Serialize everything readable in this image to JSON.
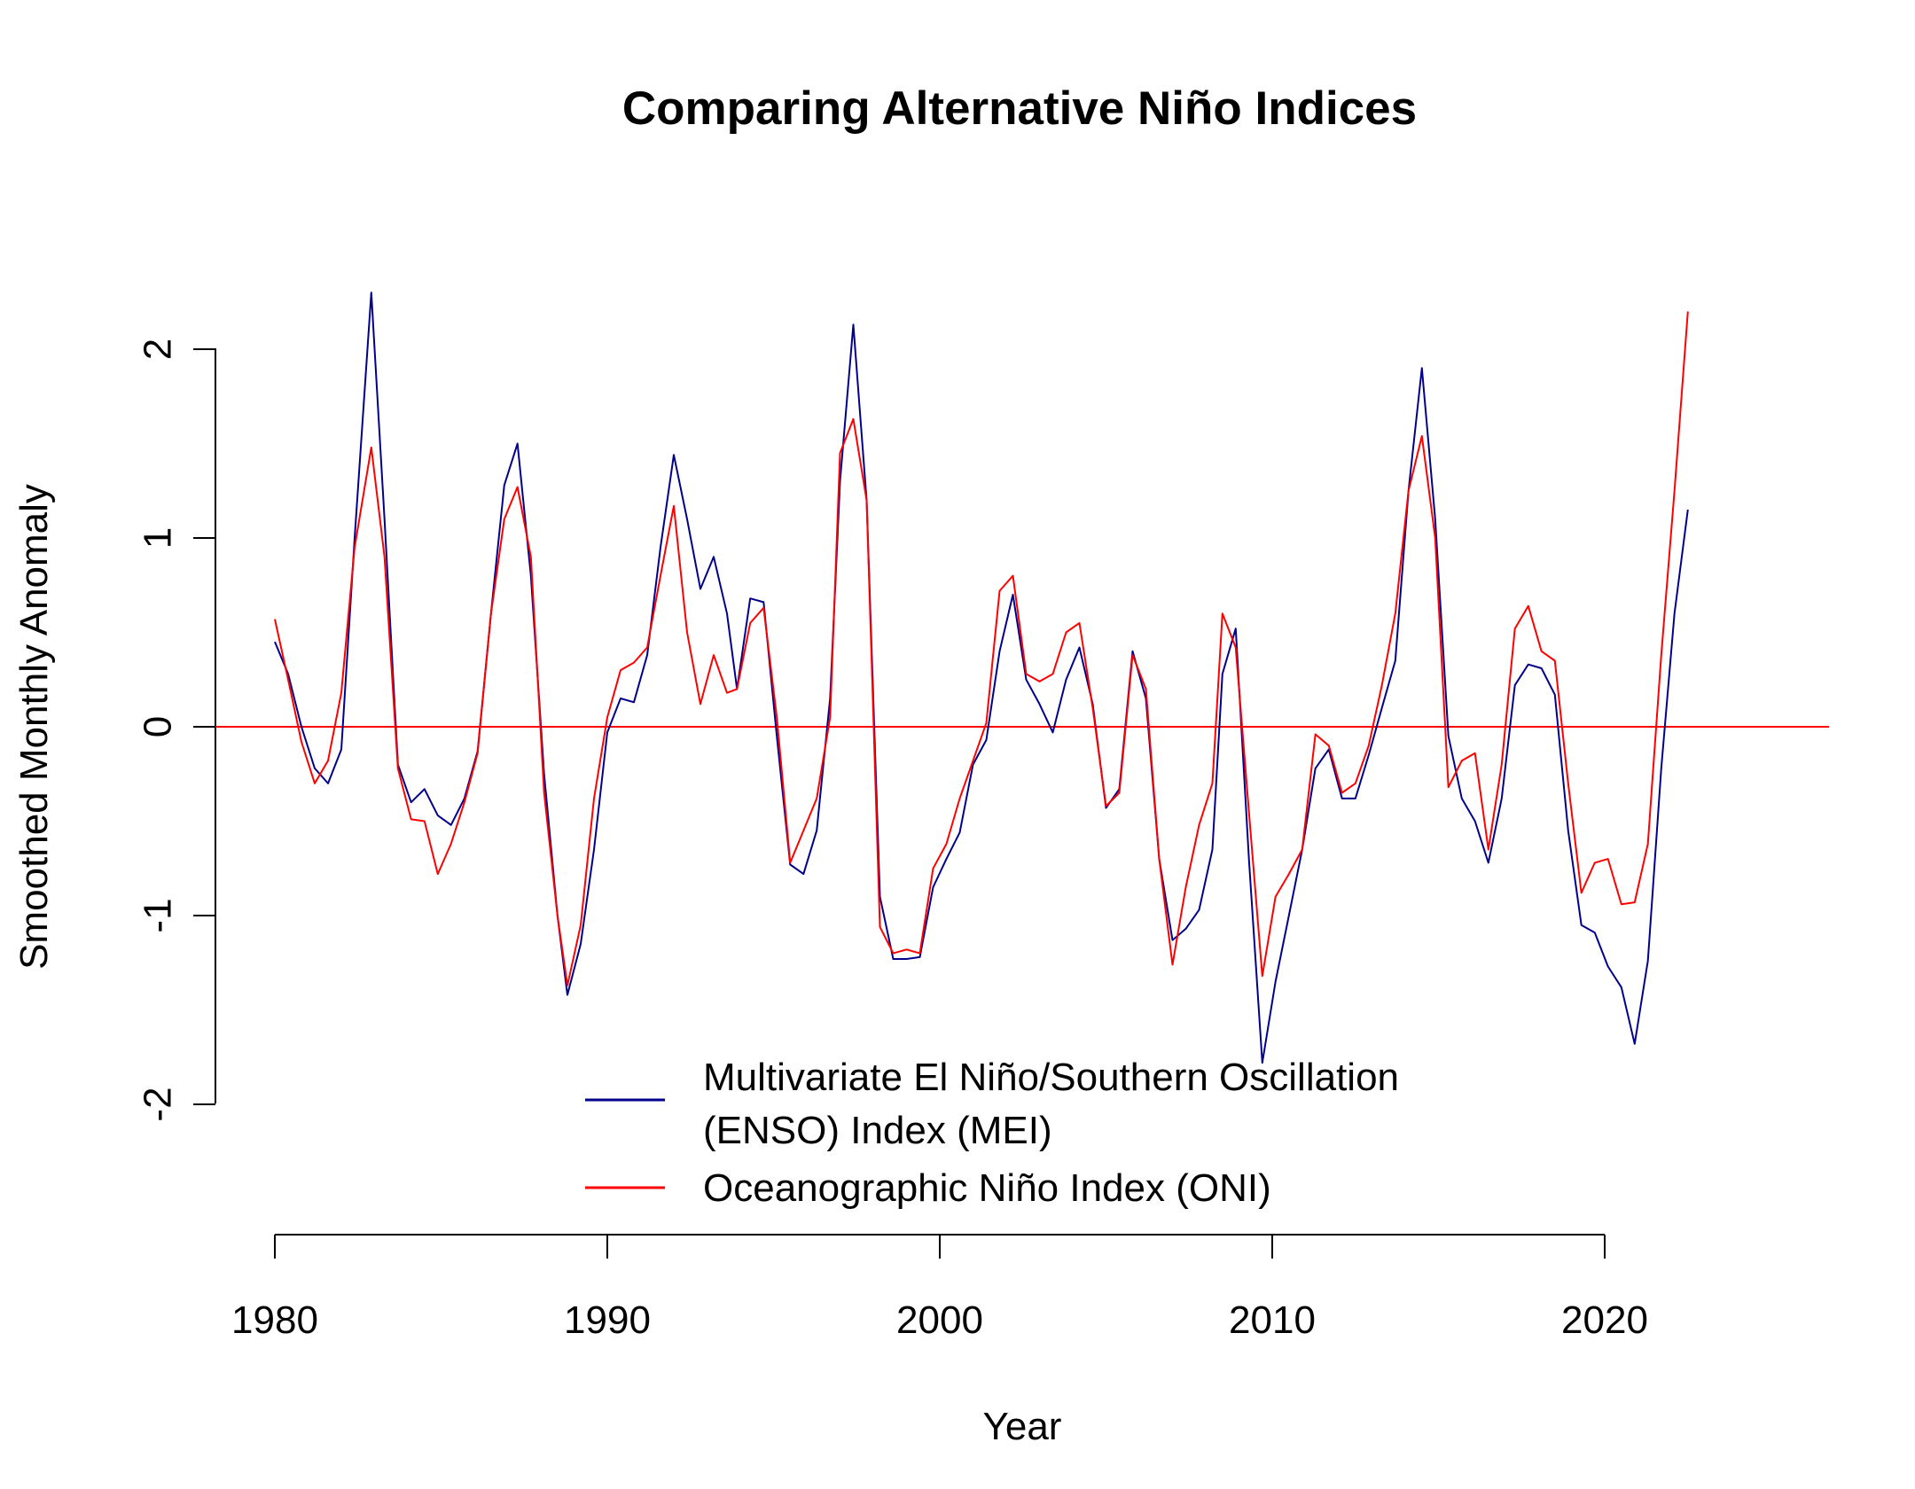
{
  "chart_data": {
    "type": "line",
    "title": "Comparing Alternative Niño Indices",
    "xlabel": "Year",
    "ylabel": "Smoothed Monthly Anomaly",
    "xlim": [
      1980,
      2024
    ],
    "ylim": [
      -2,
      2.3
    ],
    "x_ticks": [
      {
        "value": 1980,
        "label": "1980"
      },
      {
        "value": 1990,
        "label": "1990"
      },
      {
        "value": 2000,
        "label": "2000"
      },
      {
        "value": 2010,
        "label": "2010"
      },
      {
        "value": 2020,
        "label": "2020"
      }
    ],
    "y_ticks": [
      {
        "value": -2,
        "label": "-2"
      },
      {
        "value": -1,
        "label": "-1"
      },
      {
        "value": 0,
        "label": "0"
      },
      {
        "value": 1,
        "label": "1"
      },
      {
        "value": 2,
        "label": "2"
      }
    ],
    "reference_line": {
      "y": 0,
      "color": "#ff0000"
    },
    "legend": {
      "position": "bottom-center"
    },
    "series": [
      {
        "name": "Multivariate El Niño/Southern Oscillation (ENSO) Index (MEI)",
        "legend_lines": [
          "Multivariate El Niño/Southern Oscillation",
          "(ENSO) Index (MEI)"
        ],
        "color": "#00008b",
        "points": [
          [
            1980.0,
            0.45
          ],
          [
            1980.4,
            0.28
          ],
          [
            1980.8,
            0.0
          ],
          [
            1981.2,
            -0.22
          ],
          [
            1981.6,
            -0.3
          ],
          [
            1982.0,
            -0.12
          ],
          [
            1982.4,
            1.0
          ],
          [
            1982.9,
            2.3
          ],
          [
            1983.3,
            1.1
          ],
          [
            1983.7,
            -0.2
          ],
          [
            1984.1,
            -0.4
          ],
          [
            1984.5,
            -0.33
          ],
          [
            1984.9,
            -0.47
          ],
          [
            1985.3,
            -0.52
          ],
          [
            1985.7,
            -0.38
          ],
          [
            1986.1,
            -0.13
          ],
          [
            1986.5,
            0.6
          ],
          [
            1986.9,
            1.28
          ],
          [
            1987.3,
            1.5
          ],
          [
            1987.7,
            0.8
          ],
          [
            1988.1,
            -0.25
          ],
          [
            1988.5,
            -1.0
          ],
          [
            1988.8,
            -1.42
          ],
          [
            1989.2,
            -1.15
          ],
          [
            1989.6,
            -0.65
          ],
          [
            1990.0,
            -0.03
          ],
          [
            1990.4,
            0.15
          ],
          [
            1990.8,
            0.13
          ],
          [
            1991.2,
            0.38
          ],
          [
            1991.6,
            0.95
          ],
          [
            1992.0,
            1.44
          ],
          [
            1992.4,
            1.1
          ],
          [
            1992.8,
            0.73
          ],
          [
            1993.2,
            0.9
          ],
          [
            1993.6,
            0.6
          ],
          [
            1993.9,
            0.2
          ],
          [
            1994.3,
            0.68
          ],
          [
            1994.7,
            0.66
          ],
          [
            1995.1,
            -0.05
          ],
          [
            1995.5,
            -0.73
          ],
          [
            1995.9,
            -0.78
          ],
          [
            1996.3,
            -0.55
          ],
          [
            1996.7,
            0.15
          ],
          [
            1997.0,
            1.3
          ],
          [
            1997.4,
            2.13
          ],
          [
            1997.8,
            1.2
          ],
          [
            1998.2,
            -0.9
          ],
          [
            1998.6,
            -1.23
          ],
          [
            1999.0,
            -1.23
          ],
          [
            1999.4,
            -1.22
          ],
          [
            1999.8,
            -0.85
          ],
          [
            2000.2,
            -0.7
          ],
          [
            2000.6,
            -0.56
          ],
          [
            2001.0,
            -0.2
          ],
          [
            2001.4,
            -0.07
          ],
          [
            2001.8,
            0.4
          ],
          [
            2002.2,
            0.7
          ],
          [
            2002.6,
            0.25
          ],
          [
            2003.0,
            0.12
          ],
          [
            2003.4,
            -0.03
          ],
          [
            2003.8,
            0.25
          ],
          [
            2004.2,
            0.42
          ],
          [
            2004.6,
            0.12
          ],
          [
            2005.0,
            -0.43
          ],
          [
            2005.4,
            -0.33
          ],
          [
            2005.8,
            0.4
          ],
          [
            2006.2,
            0.15
          ],
          [
            2006.6,
            -0.7
          ],
          [
            2007.0,
            -1.13
          ],
          [
            2007.4,
            -1.07
          ],
          [
            2007.8,
            -0.97
          ],
          [
            2008.2,
            -0.65
          ],
          [
            2008.5,
            0.28
          ],
          [
            2008.9,
            0.52
          ],
          [
            2009.3,
            -0.7
          ],
          [
            2009.7,
            -1.78
          ],
          [
            2010.1,
            -1.35
          ],
          [
            2010.5,
            -1.0
          ],
          [
            2010.9,
            -0.65
          ],
          [
            2011.3,
            -0.22
          ],
          [
            2011.7,
            -0.12
          ],
          [
            2012.1,
            -0.38
          ],
          [
            2012.5,
            -0.38
          ],
          [
            2012.9,
            -0.15
          ],
          [
            2013.3,
            0.1
          ],
          [
            2013.7,
            0.35
          ],
          [
            2014.1,
            1.25
          ],
          [
            2014.5,
            1.9
          ],
          [
            2014.9,
            1.1
          ],
          [
            2015.3,
            -0.05
          ],
          [
            2015.7,
            -0.38
          ],
          [
            2016.1,
            -0.5
          ],
          [
            2016.5,
            -0.72
          ],
          [
            2016.9,
            -0.38
          ],
          [
            2017.3,
            0.22
          ],
          [
            2017.7,
            0.33
          ],
          [
            2018.1,
            0.31
          ],
          [
            2018.5,
            0.17
          ],
          [
            2018.9,
            -0.55
          ],
          [
            2019.3,
            -1.05
          ],
          [
            2019.7,
            -1.09
          ],
          [
            2020.1,
            -1.27
          ],
          [
            2020.5,
            -1.38
          ],
          [
            2020.9,
            -1.68
          ],
          [
            2021.3,
            -1.24
          ],
          [
            2021.7,
            -0.22
          ],
          [
            2022.1,
            0.6
          ],
          [
            2022.5,
            1.15
          ]
        ]
      },
      {
        "name": "Oceanographic Niño Index (ONI)",
        "legend_lines": [
          "Oceanographic Niño Index (ONI)"
        ],
        "color": "#ff0000",
        "points": [
          [
            1980.0,
            0.57
          ],
          [
            1980.4,
            0.25
          ],
          [
            1980.8,
            -0.08
          ],
          [
            1981.2,
            -0.3
          ],
          [
            1981.6,
            -0.18
          ],
          [
            1982.0,
            0.18
          ],
          [
            1982.4,
            0.95
          ],
          [
            1982.9,
            1.48
          ],
          [
            1983.3,
            0.9
          ],
          [
            1983.7,
            -0.22
          ],
          [
            1984.1,
            -0.49
          ],
          [
            1984.5,
            -0.5
          ],
          [
            1984.9,
            -0.78
          ],
          [
            1985.3,
            -0.62
          ],
          [
            1985.7,
            -0.4
          ],
          [
            1986.1,
            -0.14
          ],
          [
            1986.5,
            0.6
          ],
          [
            1986.9,
            1.1
          ],
          [
            1987.3,
            1.27
          ],
          [
            1987.7,
            0.9
          ],
          [
            1988.1,
            -0.35
          ],
          [
            1988.5,
            -1.0
          ],
          [
            1988.8,
            -1.37
          ],
          [
            1989.2,
            -1.05
          ],
          [
            1989.6,
            -0.38
          ],
          [
            1990.0,
            0.05
          ],
          [
            1990.4,
            0.3
          ],
          [
            1990.8,
            0.34
          ],
          [
            1991.2,
            0.42
          ],
          [
            1991.6,
            0.8
          ],
          [
            1992.0,
            1.17
          ],
          [
            1992.4,
            0.5
          ],
          [
            1992.8,
            0.12
          ],
          [
            1993.2,
            0.38
          ],
          [
            1993.6,
            0.18
          ],
          [
            1993.9,
            0.2
          ],
          [
            1994.3,
            0.55
          ],
          [
            1994.7,
            0.63
          ],
          [
            1995.1,
            0.05
          ],
          [
            1995.5,
            -0.72
          ],
          [
            1995.9,
            -0.55
          ],
          [
            1996.3,
            -0.38
          ],
          [
            1996.7,
            0.05
          ],
          [
            1997.0,
            1.45
          ],
          [
            1997.4,
            1.63
          ],
          [
            1997.8,
            1.2
          ],
          [
            1998.2,
            -1.06
          ],
          [
            1998.6,
            -1.2
          ],
          [
            1999.0,
            -1.18
          ],
          [
            1999.4,
            -1.2
          ],
          [
            1999.8,
            -0.75
          ],
          [
            2000.2,
            -0.62
          ],
          [
            2000.6,
            -0.38
          ],
          [
            2001.0,
            -0.18
          ],
          [
            2001.4,
            0.02
          ],
          [
            2001.8,
            0.72
          ],
          [
            2002.2,
            0.8
          ],
          [
            2002.6,
            0.28
          ],
          [
            2003.0,
            0.24
          ],
          [
            2003.4,
            0.28
          ],
          [
            2003.8,
            0.5
          ],
          [
            2004.2,
            0.55
          ],
          [
            2004.6,
            0.1
          ],
          [
            2005.0,
            -0.42
          ],
          [
            2005.4,
            -0.35
          ],
          [
            2005.8,
            0.38
          ],
          [
            2006.2,
            0.2
          ],
          [
            2006.6,
            -0.7
          ],
          [
            2007.0,
            -1.26
          ],
          [
            2007.4,
            -0.85
          ],
          [
            2007.8,
            -0.52
          ],
          [
            2008.2,
            -0.3
          ],
          [
            2008.5,
            0.6
          ],
          [
            2008.9,
            0.42
          ],
          [
            2009.3,
            -0.45
          ],
          [
            2009.7,
            -1.32
          ],
          [
            2010.1,
            -0.9
          ],
          [
            2010.5,
            -0.78
          ],
          [
            2010.9,
            -0.65
          ],
          [
            2011.3,
            -0.04
          ],
          [
            2011.7,
            -0.1
          ],
          [
            2012.1,
            -0.35
          ],
          [
            2012.5,
            -0.3
          ],
          [
            2012.9,
            -0.1
          ],
          [
            2013.3,
            0.22
          ],
          [
            2013.7,
            0.6
          ],
          [
            2014.1,
            1.25
          ],
          [
            2014.5,
            1.54
          ],
          [
            2014.9,
            1.0
          ],
          [
            2015.3,
            -0.32
          ],
          [
            2015.7,
            -0.18
          ],
          [
            2016.1,
            -0.14
          ],
          [
            2016.5,
            -0.65
          ],
          [
            2016.9,
            -0.2
          ],
          [
            2017.3,
            0.52
          ],
          [
            2017.7,
            0.64
          ],
          [
            2018.1,
            0.4
          ],
          [
            2018.5,
            0.35
          ],
          [
            2018.9,
            -0.3
          ],
          [
            2019.3,
            -0.88
          ],
          [
            2019.7,
            -0.72
          ],
          [
            2020.1,
            -0.7
          ],
          [
            2020.5,
            -0.94
          ],
          [
            2020.9,
            -0.93
          ],
          [
            2021.3,
            -0.62
          ],
          [
            2021.7,
            0.38
          ],
          [
            2022.1,
            1.25
          ],
          [
            2022.5,
            2.2
          ]
        ]
      }
    ]
  }
}
